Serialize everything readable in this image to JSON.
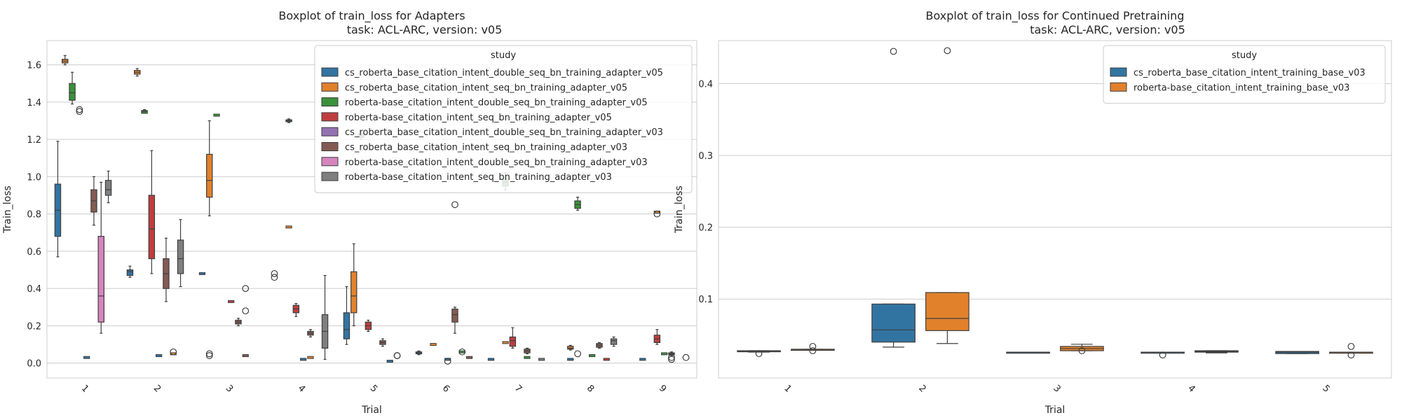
{
  "chart_data": [
    {
      "type": "box",
      "title": "Boxplot of train_loss for Adapters\n                task: ACL-ARC, version: v05",
      "xlabel": "Trial",
      "ylabel": "Train_loss",
      "ylim": [
        -0.08,
        1.73
      ],
      "yticks": [
        0.0,
        0.2,
        0.4,
        0.6,
        0.8,
        1.0,
        1.2,
        1.4,
        1.6
      ],
      "categories": [
        "1",
        "2",
        "3",
        "4",
        "5",
        "6",
        "7",
        "8",
        "9"
      ],
      "grid": true,
      "legend_title": "study",
      "legend_position": "top-right",
      "series": [
        {
          "name": "cs_roberta_base_citation_intent_double_seq_bn_training_adapter_v05",
          "color": "#3274a1",
          "boxes": [
            {
              "whislo": 0.57,
              "q1": 0.68,
              "med": 0.82,
              "q3": 0.96,
              "whishi": 1.19,
              "fliers": []
            },
            {
              "whislo": 0.46,
              "q1": 0.47,
              "med": 0.49,
              "q3": 0.5,
              "whishi": 0.52,
              "fliers": []
            },
            null,
            null,
            {
              "whislo": 0.1,
              "q1": 0.13,
              "med": 0.18,
              "q3": 0.27,
              "whishi": 0.41,
              "fliers": []
            },
            {
              "whislo": 0.045,
              "q1": 0.05,
              "med": 0.055,
              "q3": 0.06,
              "whishi": 0.065,
              "fliers": []
            },
            null,
            null,
            null
          ]
        },
        {
          "name": "cs_roberta_base_citation_intent_seq_bn_training_adapter_v05",
          "color": "#e1812c",
          "boxes": [
            {
              "whislo": 1.6,
              "q1": 1.61,
              "med": 1.62,
              "q3": 1.63,
              "whishi": 1.65,
              "fliers": []
            },
            {
              "whislo": 1.54,
              "q1": 1.55,
              "med": 1.56,
              "q3": 1.57,
              "whishi": 1.58,
              "fliers": []
            },
            {
              "whislo": 0.79,
              "q1": 0.89,
              "med": 0.98,
              "q3": 1.12,
              "whishi": 1.3,
              "fliers": []
            },
            null,
            {
              "whislo": 0.2,
              "q1": 0.27,
              "med": 0.36,
              "q3": 0.49,
              "whishi": 0.64,
              "fliers": []
            },
            null,
            null,
            {
              "whislo": 0.07,
              "q1": 0.075,
              "med": 0.08,
              "q3": 0.09,
              "whishi": 0.095,
              "fliers": []
            },
            null
          ]
        },
        {
          "name": "roberta-base_citation_intent_double_seq_bn_training_adapter_v05",
          "color": "#3a923a",
          "boxes": [
            {
              "whislo": 1.39,
              "q1": 1.41,
              "med": 1.45,
              "q3": 1.5,
              "whishi": 1.56,
              "fliers": []
            },
            {
              "whislo": 1.34,
              "q1": 1.34,
              "med": 1.35,
              "q3": 1.355,
              "whishi": 1.36,
              "fliers": []
            },
            null,
            {
              "whislo": 1.29,
              "q1": 1.295,
              "med": 1.3,
              "q3": 1.305,
              "whishi": 1.31,
              "fliers": []
            },
            {
              "whislo": 1.2,
              "q1": 1.21,
              "med": 1.22,
              "q3": 1.23,
              "whishi": 1.24,
              "fliers": []
            },
            null,
            {
              "whislo": 0.93,
              "q1": 0.95,
              "med": 0.97,
              "q3": 0.99,
              "whishi": 1.02,
              "fliers": []
            },
            {
              "whislo": 0.82,
              "q1": 0.83,
              "med": 0.85,
              "q3": 0.87,
              "whishi": 0.89,
              "fliers": []
            },
            null
          ]
        },
        {
          "name": "roberta-base_citation_intent_seq_bn_training_adapter_v05",
          "color": "#c03d3e",
          "boxes": [
            null,
            {
              "whislo": 0.48,
              "q1": 0.56,
              "med": 0.72,
              "q3": 0.9,
              "whishi": 1.14,
              "fliers": []
            },
            null,
            {
              "whislo": 0.25,
              "q1": 0.27,
              "med": 0.29,
              "q3": 0.31,
              "whishi": 0.32,
              "fliers": []
            },
            {
              "whislo": 0.17,
              "q1": 0.18,
              "med": 0.2,
              "q3": 0.22,
              "whishi": 0.23,
              "fliers": []
            },
            null,
            {
              "whislo": 0.08,
              "q1": 0.09,
              "med": 0.12,
              "q3": 0.14,
              "whishi": 0.19,
              "fliers": []
            },
            null,
            {
              "whislo": 0.1,
              "q1": 0.11,
              "med": 0.13,
              "q3": 0.15,
              "whishi": 0.18,
              "fliers": []
            }
          ]
        },
        {
          "name": "cs_roberta_base_citation_intent_double_seq_bn_training_adapter_v03",
          "color": "#9372b2",
          "boxes": [
            null,
            null,
            null,
            null,
            null,
            null,
            null,
            null,
            null
          ]
        },
        {
          "name": "cs_roberta_base_citation_intent_seq_bn_training_adapter_v03",
          "color": "#845b53",
          "boxes": [
            {
              "whislo": 0.74,
              "q1": 0.81,
              "med": 0.87,
              "q3": 0.93,
              "whishi": 1.0,
              "fliers": []
            },
            {
              "whislo": 0.33,
              "q1": 0.4,
              "med": 0.48,
              "q3": 0.56,
              "whishi": 0.67,
              "fliers": []
            },
            {
              "whislo": 0.2,
              "q1": 0.21,
              "med": 0.22,
              "q3": 0.23,
              "whishi": 0.24,
              "fliers": []
            },
            {
              "whislo": 0.14,
              "q1": 0.15,
              "med": 0.16,
              "q3": 0.17,
              "whishi": 0.18,
              "fliers": []
            },
            {
              "whislo": 0.09,
              "q1": 0.1,
              "med": 0.11,
              "q3": 0.12,
              "whishi": 0.13,
              "fliers": []
            },
            {
              "whislo": 0.16,
              "q1": 0.22,
              "med": 0.26,
              "q3": 0.29,
              "whishi": 0.3,
              "fliers": []
            },
            {
              "whislo": 0.05,
              "q1": 0.055,
              "med": 0.065,
              "q3": 0.075,
              "whishi": 0.08,
              "fliers": []
            },
            {
              "whislo": 0.08,
              "q1": 0.085,
              "med": 0.095,
              "q3": 0.105,
              "whishi": 0.11,
              "fliers": []
            },
            {
              "whislo": 0.04,
              "q1": 0.045,
              "med": 0.05,
              "q3": 0.055,
              "whishi": 0.06,
              "fliers": []
            }
          ]
        },
        {
          "name": "roberta-base_citation_intent_double_seq_bn_training_adapter_v03",
          "color": "#d684bd",
          "boxes": [
            {
              "whislo": 0.16,
              "q1": 0.22,
              "med": 0.36,
              "q3": 0.68,
              "whishi": 0.97,
              "fliers": []
            },
            null,
            null,
            null,
            null,
            null,
            null,
            null,
            null
          ]
        },
        {
          "name": "roberta-base_citation_intent_seq_bn_training_adapter_v03",
          "color": "#7f7f7f",
          "boxes": [
            {
              "whislo": 0.86,
              "q1": 0.9,
              "med": 0.93,
              "q3": 0.98,
              "whishi": 1.03,
              "fliers": []
            },
            {
              "whislo": 0.41,
              "q1": 0.48,
              "med": 0.56,
              "q3": 0.66,
              "whishi": 0.77,
              "fliers": []
            },
            null,
            {
              "whislo": 0.02,
              "q1": 0.08,
              "med": 0.17,
              "q3": 0.26,
              "whishi": 0.47,
              "fliers": []
            },
            null,
            null,
            null,
            {
              "whislo": 0.09,
              "q1": 0.1,
              "med": 0.12,
              "q3": 0.13,
              "whishi": 0.14,
              "fliers": []
            },
            null
          ]
        }
      ],
      "extra_marks": {
        "flat_boxes": [
          {
            "trial": 1,
            "slot": 4,
            "value": 0.03,
            "color": "#3274a1"
          },
          {
            "trial": 2,
            "slot": 4,
            "value": 0.04,
            "color": "#3274a1"
          },
          {
            "trial": 2,
            "slot": 6,
            "value": 0.05,
            "color": "#e1812c"
          },
          {
            "trial": 3,
            "slot": 0,
            "value": 0.48,
            "color": "#3274a1"
          },
          {
            "trial": 3,
            "slot": 2,
            "value": 1.33,
            "color": "#3a923a"
          },
          {
            "trial": 3,
            "slot": 4,
            "value": 0.33,
            "color": "#c03d3e"
          },
          {
            "trial": 3,
            "slot": 6,
            "value": 0.04,
            "color": "#845b53"
          },
          {
            "trial": 4,
            "slot": 2,
            "value": 0.73,
            "color": "#e1812c"
          },
          {
            "trial": 4,
            "slot": 4,
            "value": 0.02,
            "color": "#3274a1"
          },
          {
            "trial": 4,
            "slot": 5,
            "value": 0.03,
            "color": "#e1812c"
          },
          {
            "trial": 5,
            "slot": 6,
            "value": 0.01,
            "color": "#3274a1"
          },
          {
            "trial": 6,
            "slot": 2,
            "value": 0.1,
            "color": "#e1812c"
          },
          {
            "trial": 6,
            "slot": 4,
            "value": 0.02,
            "color": "#3274a1"
          },
          {
            "trial": 6,
            "slot": 6,
            "value": 0.06,
            "color": "#3a923a"
          },
          {
            "trial": 6,
            "slot": 7,
            "value": 0.03,
            "color": "#845b53"
          },
          {
            "trial": 7,
            "slot": 0,
            "value": 0.02,
            "color": "#3274a1"
          },
          {
            "trial": 7,
            "slot": 2,
            "value": 0.11,
            "color": "#e1812c"
          },
          {
            "trial": 7,
            "slot": 5,
            "value": 0.03,
            "color": "#3a923a"
          },
          {
            "trial": 7,
            "slot": 7,
            "value": 0.02,
            "color": "#7f7f7f"
          },
          {
            "trial": 8,
            "slot": 1,
            "value": 0.02,
            "color": "#3274a1"
          },
          {
            "trial": 8,
            "slot": 4,
            "value": 0.04,
            "color": "#3a923a"
          },
          {
            "trial": 8,
            "slot": 6,
            "value": 0.02,
            "color": "#c03d3e"
          },
          {
            "trial": 9,
            "slot": 1,
            "value": 0.02,
            "color": "#3274a1"
          },
          {
            "trial": 9,
            "slot": 3,
            "value": 0.81,
            "color": "#e1812c"
          },
          {
            "trial": 9,
            "slot": 4,
            "value": 0.05,
            "color": "#3a923a"
          }
        ],
        "fliers": [
          {
            "trial": 1,
            "slot": 3,
            "values": [
              1.35,
              1.36
            ]
          },
          {
            "trial": 2,
            "slot": 6,
            "values": [
              0.06
            ]
          },
          {
            "trial": 3,
            "slot": 1,
            "values": [
              0.04,
              0.05
            ]
          },
          {
            "trial": 3,
            "slot": 6,
            "values": [
              0.28,
              0.4
            ]
          },
          {
            "trial": 4,
            "slot": 0,
            "values": [
              0.46,
              0.48
            ]
          },
          {
            "trial": 5,
            "slot": 7,
            "values": [
              0.04,
              0.04
            ]
          },
          {
            "trial": 6,
            "slot": 4,
            "values": [
              0.01
            ]
          },
          {
            "trial": 6,
            "slot": 5,
            "values": [
              0.85
            ]
          },
          {
            "trial": 6,
            "slot": 6,
            "values": [
              0.06
            ]
          },
          {
            "trial": 8,
            "slot": 2,
            "values": [
              0.05
            ]
          },
          {
            "trial": 9,
            "slot": 3,
            "values": [
              0.8
            ]
          },
          {
            "trial": 9,
            "slot": 5,
            "values": [
              0.02,
              0.03
            ]
          },
          {
            "trial": 9,
            "slot": 7,
            "values": [
              0.03
            ]
          }
        ]
      }
    },
    {
      "type": "box",
      "title": "Boxplot of train_loss for Continued Pretraining\n                task: ACL-ARC, version: v05",
      "xlabel": "Trial",
      "ylabel": "Train_loss",
      "ylim": [
        -0.01,
        0.46
      ],
      "yticks": [
        0.1,
        0.2,
        0.3,
        0.4
      ],
      "categories": [
        "1",
        "2",
        "3",
        "4",
        "5"
      ],
      "grid": true,
      "legend_title": "study",
      "legend_position": "top-right",
      "series": [
        {
          "name": "cs_roberta_base_citation_intent_training_base_v03",
          "color": "#3274a1",
          "boxes": [
            {
              "whislo": 0.026,
              "q1": 0.027,
              "med": 0.027,
              "q3": 0.028,
              "whishi": 0.028,
              "fliers": [
                0.024
              ]
            },
            {
              "whislo": 0.033,
              "q1": 0.04,
              "med": 0.057,
              "q3": 0.093,
              "whishi": 0.093,
              "fliers": [
                0.445
              ]
            },
            {
              "whislo": 0.025,
              "q1": 0.025,
              "med": 0.026,
              "q3": 0.026,
              "whishi": 0.026,
              "fliers": []
            },
            {
              "whislo": 0.025,
              "q1": 0.025,
              "med": 0.026,
              "q3": 0.026,
              "whishi": 0.026,
              "fliers": [
                0.022
              ]
            },
            {
              "whislo": 0.024,
              "q1": 0.024,
              "med": 0.026,
              "q3": 0.027,
              "whishi": 0.027,
              "fliers": []
            }
          ]
        },
        {
          "name": "roberta-base_citation_intent_training_base_v03",
          "color": "#e1812c",
          "boxes": [
            {
              "whislo": 0.029,
              "q1": 0.029,
              "med": 0.03,
              "q3": 0.03,
              "whishi": 0.03,
              "fliers": [
                0.028,
                0.034
              ]
            },
            {
              "whislo": 0.038,
              "q1": 0.056,
              "med": 0.073,
              "q3": 0.109,
              "whishi": 0.109,
              "fliers": [
                0.446
              ]
            },
            {
              "whislo": 0.028,
              "q1": 0.028,
              "med": 0.031,
              "q3": 0.034,
              "whishi": 0.037,
              "fliers": [
                0.028
              ]
            },
            {
              "whislo": 0.025,
              "q1": 0.026,
              "med": 0.027,
              "q3": 0.028,
              "whishi": 0.028,
              "fliers": []
            },
            {
              "whislo": 0.025,
              "q1": 0.025,
              "med": 0.026,
              "q3": 0.026,
              "whishi": 0.026,
              "fliers": [
                0.022,
                0.034
              ]
            }
          ]
        }
      ]
    }
  ]
}
